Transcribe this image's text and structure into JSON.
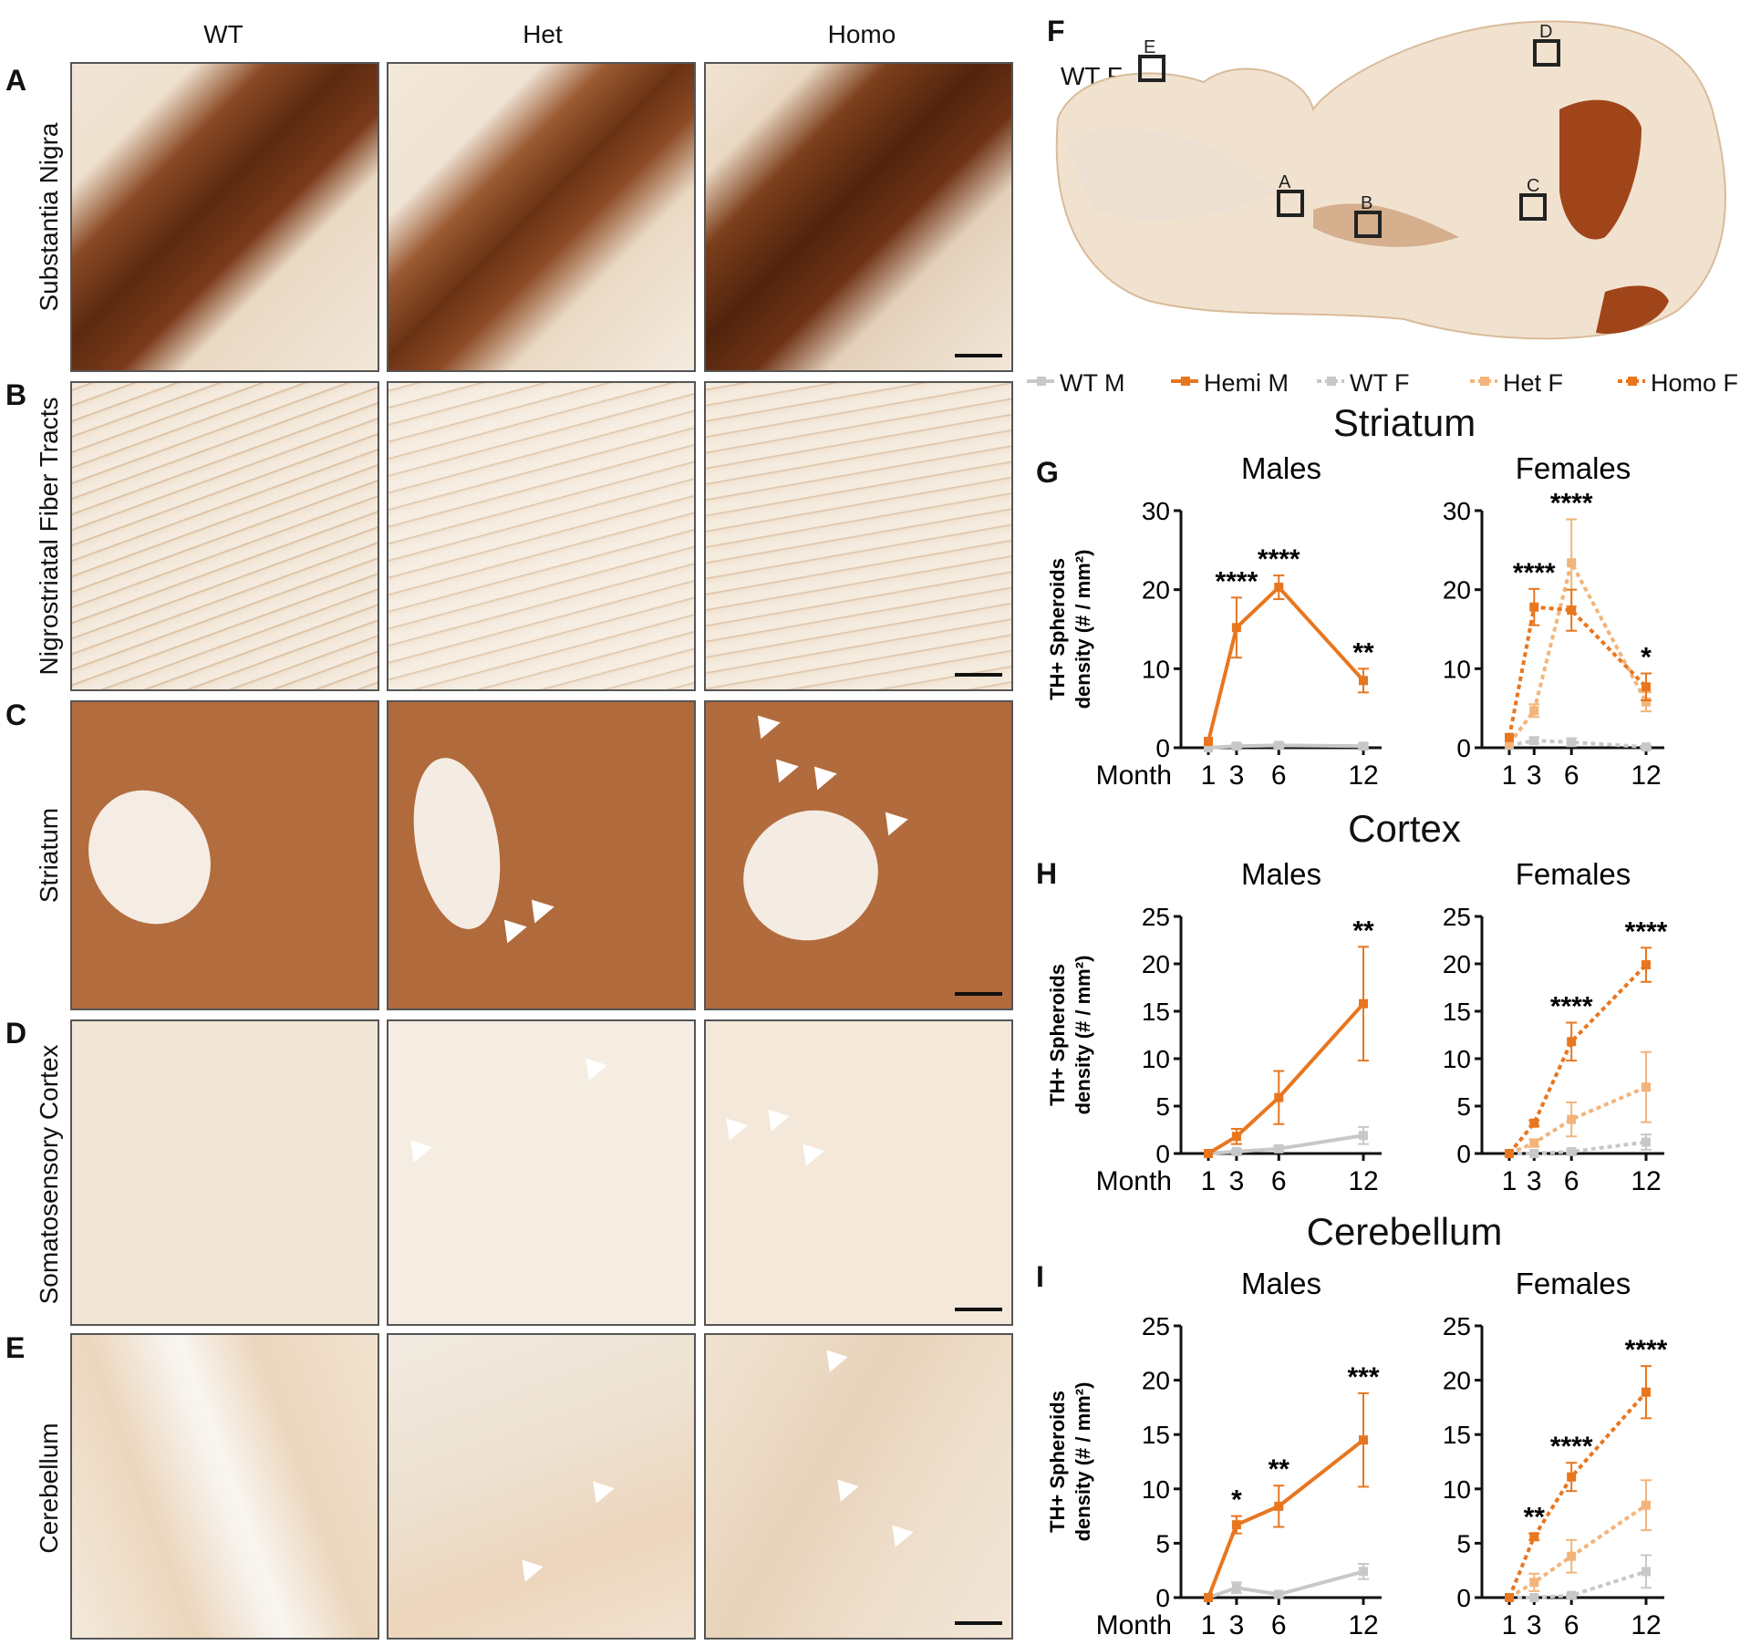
{
  "column_headers": [
    "WT",
    "Het",
    "Homo"
  ],
  "rows": [
    {
      "letter": "A",
      "label": "Substantia Nigra"
    },
    {
      "letter": "B",
      "label": "Nigrostriatal Fiber Tracts"
    },
    {
      "letter": "C",
      "label": "Striatum"
    },
    {
      "letter": "D",
      "label": "Somatosensory Cortex"
    },
    {
      "letter": "E",
      "label": "Cerebellum"
    }
  ],
  "brain": {
    "panel_letter": "F",
    "label": "WT F",
    "boxes": [
      "A",
      "B",
      "C",
      "D",
      "E"
    ]
  },
  "legend": [
    {
      "name": "WT M",
      "color": "#c8c8c8",
      "dashed": false
    },
    {
      "name": "Hemi M",
      "color": "#e8761f",
      "dashed": false
    },
    {
      "name": "WT F",
      "color": "#c8c8c8",
      "dashed": true
    },
    {
      "name": "Het F",
      "color": "#f2b47a",
      "dashed": true
    },
    {
      "name": "Homo F",
      "color": "#e8761f",
      "dashed": true
    }
  ],
  "colors": {
    "wt": "#c8c8c8",
    "hemi": "#e8761f",
    "het": "#f2b47a",
    "homo": "#e8761f"
  },
  "chart_data": [
    {
      "panel": "G",
      "region": "Striatum",
      "type": "line",
      "ylabel_line1": "TH+ Spheroids",
      "ylabel_line2": "density (# / mm²)",
      "xlabel": "Month",
      "x": [
        1,
        3,
        6,
        12
      ],
      "ylim": [
        0,
        30
      ],
      "yticks": [
        0,
        10,
        20,
        30
      ],
      "males": {
        "title": "Males",
        "series": [
          {
            "name": "WT M",
            "values": [
              0,
              0.2,
              0.3,
              0.2
            ],
            "err": [
              0,
              0.3,
              0.3,
              0.3
            ]
          },
          {
            "name": "Hemi M",
            "values": [
              0.8,
              15.2,
              20.3,
              8.5
            ],
            "err": [
              0,
              3.8,
              1.5,
              1.5
            ]
          }
        ],
        "stars": [
          "",
          "****",
          "****",
          "**"
        ]
      },
      "females": {
        "title": "Females",
        "series": [
          {
            "name": "WT F",
            "values": [
              0.3,
              0.9,
              0.7,
              0.1
            ],
            "err": [
              0,
              0.4,
              0.5,
              0.2
            ]
          },
          {
            "name": "Het F",
            "values": [
              0.5,
              4.7,
              23.4,
              5.8
            ],
            "err": [
              0,
              0.8,
              5.5,
              1.2
            ]
          },
          {
            "name": "Homo F",
            "values": [
              1.3,
              17.8,
              17.4,
              7.7
            ],
            "err": [
              0,
              2.3,
              2.6,
              1.7
            ]
          }
        ],
        "stars": [
          "",
          "****",
          "****",
          "*"
        ]
      }
    },
    {
      "panel": "H",
      "region": "Cortex",
      "type": "line",
      "ylabel_line1": "TH+ Spheroids",
      "ylabel_line2": "density (# / mm²)",
      "xlabel": "Month",
      "x": [
        1,
        3,
        6,
        12
      ],
      "ylim": [
        0,
        25
      ],
      "yticks": [
        0,
        5,
        10,
        15,
        20,
        25
      ],
      "males": {
        "title": "Males",
        "series": [
          {
            "name": "WT M",
            "values": [
              0,
              0.2,
              0.5,
              1.9
            ],
            "err": [
              0,
              0.2,
              0.3,
              0.9
            ]
          },
          {
            "name": "Hemi M",
            "values": [
              0,
              1.8,
              5.9,
              15.8
            ],
            "err": [
              0,
              0.8,
              2.8,
              6.0
            ]
          }
        ],
        "stars": [
          "",
          "",
          "",
          "**"
        ]
      },
      "females": {
        "title": "Females",
        "series": [
          {
            "name": "WT F",
            "values": [
              0,
              0,
              0.2,
              1.2
            ],
            "err": [
              0,
              0,
              0.2,
              0.8
            ]
          },
          {
            "name": "Het F",
            "values": [
              0,
              1.1,
              3.6,
              7.0
            ],
            "err": [
              0,
              0.4,
              1.8,
              3.7
            ]
          },
          {
            "name": "Homo F",
            "values": [
              0,
              3.2,
              11.8,
              19.9
            ],
            "err": [
              0,
              0.3,
              2.0,
              1.8
            ]
          }
        ],
        "stars": [
          "",
          "",
          "****",
          "****"
        ]
      }
    },
    {
      "panel": "I",
      "region": "Cerebellum",
      "type": "line",
      "ylabel_line1": "TH+ Spheroids",
      "ylabel_line2": "density (# / mm²)",
      "xlabel": "Month",
      "x": [
        1,
        3,
        6,
        12
      ],
      "ylim": [
        0,
        25
      ],
      "yticks": [
        0,
        5,
        10,
        15,
        20,
        25
      ],
      "males": {
        "title": "Males",
        "series": [
          {
            "name": "WT M",
            "values": [
              0,
              0.9,
              0.3,
              2.4
            ],
            "err": [
              0,
              0.5,
              0.2,
              0.7
            ]
          },
          {
            "name": "Hemi M",
            "values": [
              0,
              6.7,
              8.4,
              14.5
            ],
            "err": [
              0,
              0.8,
              1.9,
              4.3
            ]
          }
        ],
        "stars": [
          "",
          "*",
          "**",
          "***"
        ]
      },
      "females": {
        "title": "Females",
        "series": [
          {
            "name": "WT F",
            "values": [
              0,
              0,
              0.2,
              2.4
            ],
            "err": [
              0,
              0,
              0.2,
              1.5
            ]
          },
          {
            "name": "Het F",
            "values": [
              0,
              1.4,
              3.8,
              8.5
            ],
            "err": [
              0,
              0.8,
              1.5,
              2.3
            ]
          },
          {
            "name": "Homo F",
            "values": [
              0,
              5.6,
              11.1,
              18.9
            ],
            "err": [
              0,
              0.3,
              1.3,
              2.4
            ]
          }
        ],
        "stars": [
          "",
          "**",
          "****",
          "****"
        ]
      }
    }
  ]
}
